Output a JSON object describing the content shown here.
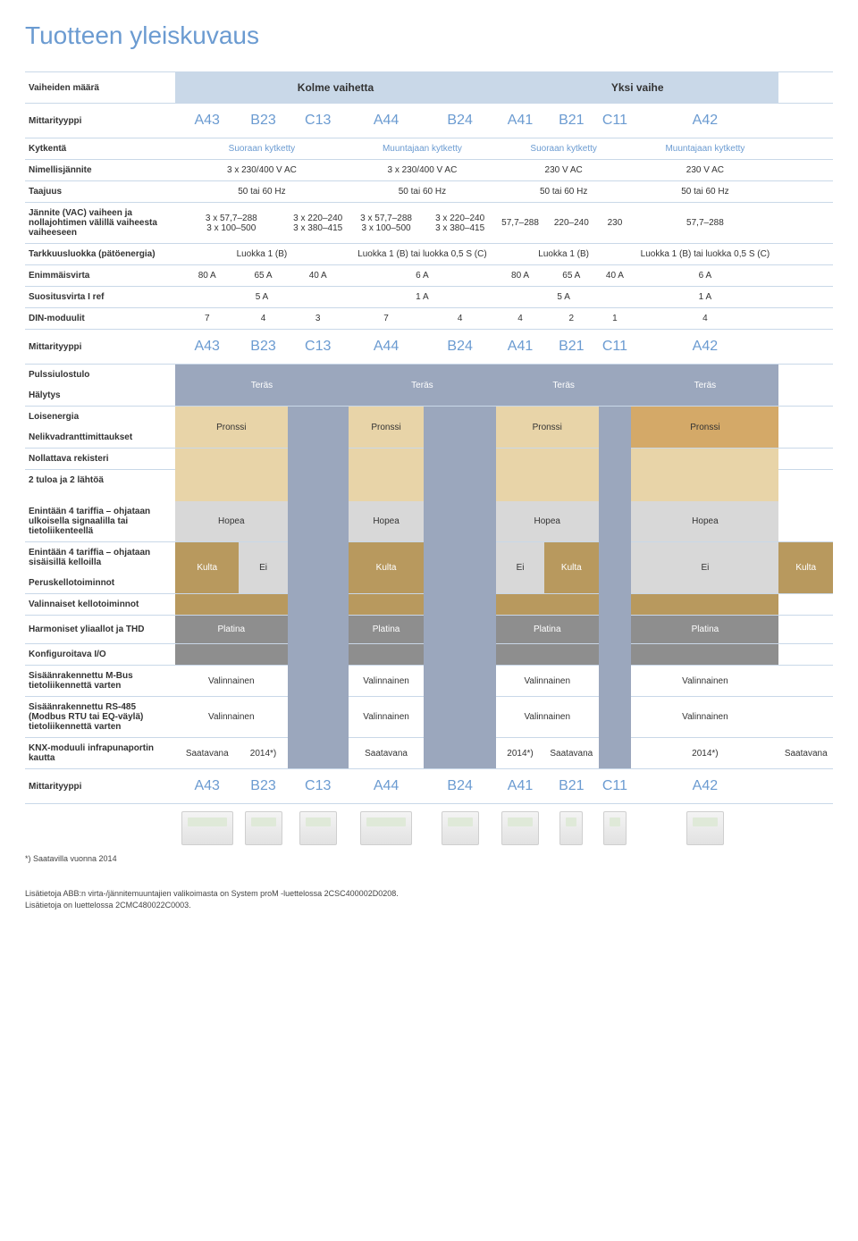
{
  "title": "Tuotteen yleiskuvaus",
  "headers": {
    "phases_label": "Vaiheiden määrä",
    "three_phase": "Kolme vaihetta",
    "one_phase": "Yksi vaihe"
  },
  "types": {
    "label": "Mittarityyppi",
    "a43": "A43",
    "b23": "B23",
    "c13": "C13",
    "a44": "A44",
    "b24": "B24",
    "a41": "A41",
    "b21": "B21",
    "c11": "C11",
    "a42": "A42"
  },
  "rows": {
    "connection": {
      "label": "Kytkentä",
      "direct": "Suoraan kytketty",
      "transformer": "Muuntajaan kytketty"
    },
    "nominal_voltage": {
      "label": "Nimellisjännite",
      "v3_400": "3 x 230/400 V AC",
      "v230": "230 V AC"
    },
    "frequency": {
      "label": "Taajuus",
      "val": "50 tai 60 Hz"
    },
    "voltage_range": {
      "label": "Jännite (VAC) vaiheen ja nollajohtimen välillä vaiheesta vaiheeseen",
      "c1": "3 x 57,7–288\n3 x 100–500",
      "c2": "3 x 220–240\n3 x 380–415",
      "c3": "3 x 57,7–288\n3 x 100–500",
      "c4": "3 x 220–240\n3 x 380–415",
      "c5": "57,7–288",
      "c6": "220–240",
      "c7": "230",
      "c8": "57,7–288"
    },
    "accuracy": {
      "label": "Tarkkuusluokka (pätöenergia)",
      "class1b": "Luokka 1 (B)",
      "class1b_or": "Luokka 1 (B) tai luokka 0,5 S (C)"
    },
    "max_current": {
      "label": "Enimmäisvirta",
      "a80": "80 A",
      "a65": "65 A",
      "a40": "40 A",
      "a6": "6 A"
    },
    "ref_current": {
      "label": "Suositusvirta I ref",
      "a5": "5 A",
      "a1": "1 A"
    },
    "din": {
      "label": "DIN-moduulit",
      "v7": "7",
      "v4": "4",
      "v3": "3",
      "v2": "2",
      "v1": "1"
    },
    "pulse": "Pulssiulostulo",
    "alarm": "Hälytys",
    "reactive": "Loisenergia",
    "quadrant": "Nelikvadranttimittaukset",
    "reset_reg": "Nollattava rekisteri",
    "io2": "2 tuloa ja 2 lähtöä",
    "tariff_ext": "Enintään 4 tariffia – ohjataan ulkoisella signaalilla tai tietoliikenteellä",
    "tariff_int": "Enintään 4 tariffia – ohjataan sisäisillä kelloilla",
    "clock_basic": "Peruskellotoiminnot",
    "clock_opt": "Valinnaiset kellotoiminnot",
    "harmonics": "Harmoniset yliaallot ja THD",
    "config_io": "Konfiguroitava I/O",
    "mbus": "Sisäänrakennettu M-Bus tietoliikennettä varten",
    "rs485": "Sisäänrakennettu RS-485 (Modbus RTU tai EQ-väylä) tietoliikennettä varten",
    "knx": "KNX-moduuli infrapunaportin kautta"
  },
  "tiers": {
    "steel": "Teräs",
    "bronze": "Pronssi",
    "silver": "Hopea",
    "gold": "Kulta",
    "no": "Ei",
    "platinum": "Platina",
    "optional": "Valinnainen",
    "available": "Saatavana",
    "y2014": "2014*)"
  },
  "footnote": "*) Saatavilla vuonna 2014",
  "bottom": {
    "l1": "Lisätietoja ABB:n virta-/jännitemuuntajien valikoimasta on System proM -luettelossa 2CSC400002D0208.",
    "l2": "Lisätietoja on luettelossa 2CMC480022C0003."
  }
}
